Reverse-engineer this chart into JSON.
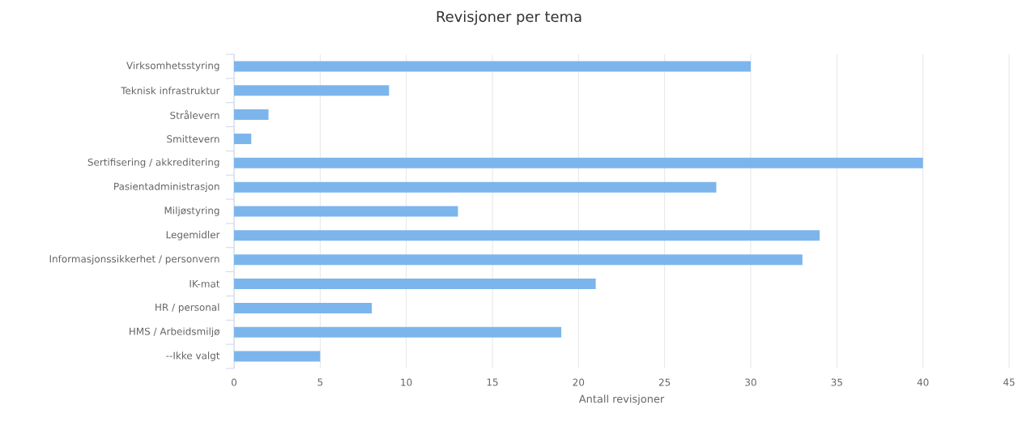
{
  "chart_data": {
    "type": "bar",
    "orientation": "horizontal",
    "title": "Revisjoner per tema",
    "xlabel": "Antall revisjoner",
    "categories": [
      "Virksomhetsstyring",
      "Teknisk infrastruktur",
      "Strålevern",
      "Smittevern",
      "Sertifisering / akkreditering",
      "Pasientadministrasjon",
      "Miljøstyring",
      "Legemidler",
      "Informasjonssikkerhet / personvern",
      "IK-mat",
      "HR / personal",
      "HMS / Arbeidsmiljø",
      "--Ikke valgt"
    ],
    "values": [
      30,
      9,
      2,
      1,
      40,
      28,
      13,
      34,
      33,
      21,
      8,
      19,
      5
    ],
    "color": "#7cb5ec",
    "xlim": [
      0,
      45
    ],
    "xticks": [
      0,
      5,
      10,
      15,
      20,
      25,
      30,
      35,
      40,
      45
    ],
    "grid": "x"
  }
}
